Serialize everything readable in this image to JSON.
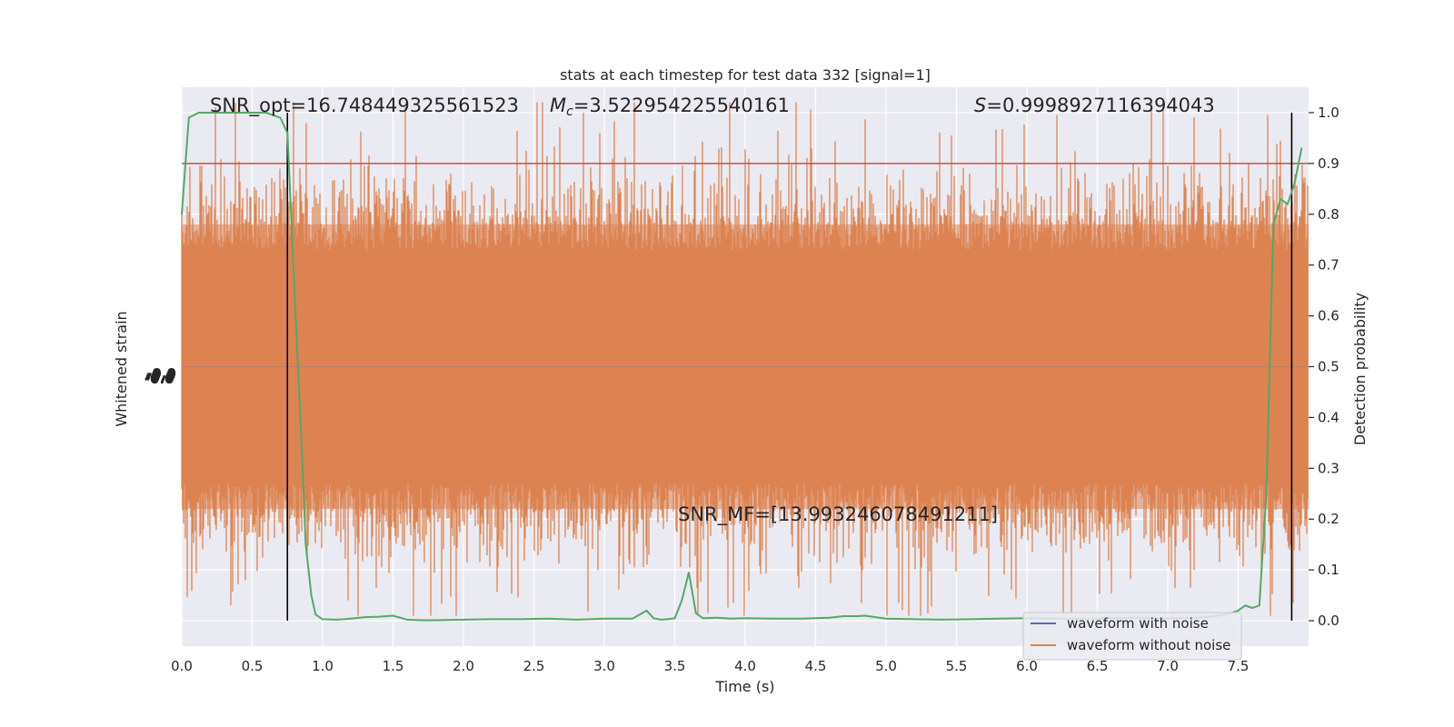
{
  "chart_data": {
    "type": "line",
    "title": "stats at each timestep for test data 332 [signal=1]",
    "xlabel": "Time (s)",
    "ylabel_left": "Whitened strain",
    "ylabel_right": "Detection probability",
    "xlim": [
      0.0,
      8.0
    ],
    "ylim_right": [
      -0.05,
      1.05
    ],
    "x_ticks": [
      "0.0",
      "0.5",
      "1.0",
      "1.5",
      "2.0",
      "2.5",
      "3.0",
      "3.5",
      "4.0",
      "4.5",
      "5.0",
      "5.5",
      "6.0",
      "6.5",
      "7.0",
      "7.5"
    ],
    "y_ticks_right": [
      "0.0",
      "0.1",
      "0.2",
      "0.3",
      "0.4",
      "0.5",
      "0.6",
      "0.7",
      "0.8",
      "0.9",
      "1.0"
    ],
    "left_tick_labels_overlapping": "-0.0",
    "grid": true,
    "legend": {
      "placement": "lower-right",
      "entries": [
        "waveform with noise",
        "waveform without noise"
      ]
    },
    "colors": {
      "plot_background": "#eaeaf2",
      "grid": "#ffffff",
      "waveform_with_noise": "#4c72b0",
      "waveform_without_noise": "#dd8452",
      "detection_probability": "#55a868",
      "threshold": "#c44e52",
      "marker_lines": "#000000"
    },
    "threshold": 0.9,
    "vertical_markers_time_s": [
      0.75,
      7.88
    ],
    "annotations": {
      "snr_opt_label": "SNR_opt=",
      "snr_opt_value": "16.748449325561523",
      "mc_label": "M",
      "mc_sub": "c",
      "mc_value": "=3.522954225540161",
      "s_label": "S",
      "s_value": "=0.9998927116394043",
      "snr_mf": "SNR_MF=[13.993246078491211]"
    },
    "series": [
      {
        "name": "detection probability curve",
        "x": [
          0.0,
          0.05,
          0.12,
          0.2,
          0.3,
          0.4,
          0.5,
          0.6,
          0.65,
          0.7,
          0.75,
          0.8,
          0.85,
          0.88,
          0.92,
          0.95,
          1.0,
          1.1,
          1.2,
          1.3,
          1.4,
          1.5,
          1.55,
          1.6,
          1.7,
          1.8,
          2.0,
          2.2,
          2.4,
          2.6,
          2.8,
          3.0,
          3.2,
          3.3,
          3.35,
          3.4,
          3.45,
          3.5,
          3.55,
          3.6,
          3.65,
          3.7,
          3.8,
          3.9,
          4.0,
          4.2,
          4.4,
          4.6,
          4.7,
          4.8,
          4.85,
          4.9,
          5.0,
          5.2,
          5.4,
          5.6,
          5.8,
          6.0,
          6.2,
          6.4,
          6.6,
          6.8,
          7.0,
          7.2,
          7.3,
          7.35,
          7.4,
          7.45,
          7.5,
          7.55,
          7.6,
          7.65,
          7.7,
          7.75,
          7.8,
          7.85,
          7.9,
          7.95
        ],
        "y": [
          0.8,
          0.99,
          1.0,
          1.0,
          1.0,
          1.0,
          1.0,
          1.0,
          0.995,
          0.99,
          0.96,
          0.65,
          0.35,
          0.15,
          0.05,
          0.012,
          0.003,
          0.002,
          0.004,
          0.007,
          0.008,
          0.01,
          0.006,
          0.002,
          0.001,
          0.001,
          0.002,
          0.003,
          0.003,
          0.004,
          0.002,
          0.004,
          0.004,
          0.02,
          0.005,
          0.002,
          0.003,
          0.005,
          0.04,
          0.095,
          0.015,
          0.005,
          0.006,
          0.004,
          0.005,
          0.004,
          0.004,
          0.006,
          0.009,
          0.009,
          0.01,
          0.008,
          0.004,
          0.003,
          0.002,
          0.003,
          0.004,
          0.005,
          0.004,
          0.004,
          0.005,
          0.006,
          0.004,
          0.006,
          0.008,
          0.01,
          0.012,
          0.015,
          0.02,
          0.03,
          0.025,
          0.03,
          0.25,
          0.78,
          0.83,
          0.82,
          0.86,
          0.93
        ]
      }
    ]
  }
}
